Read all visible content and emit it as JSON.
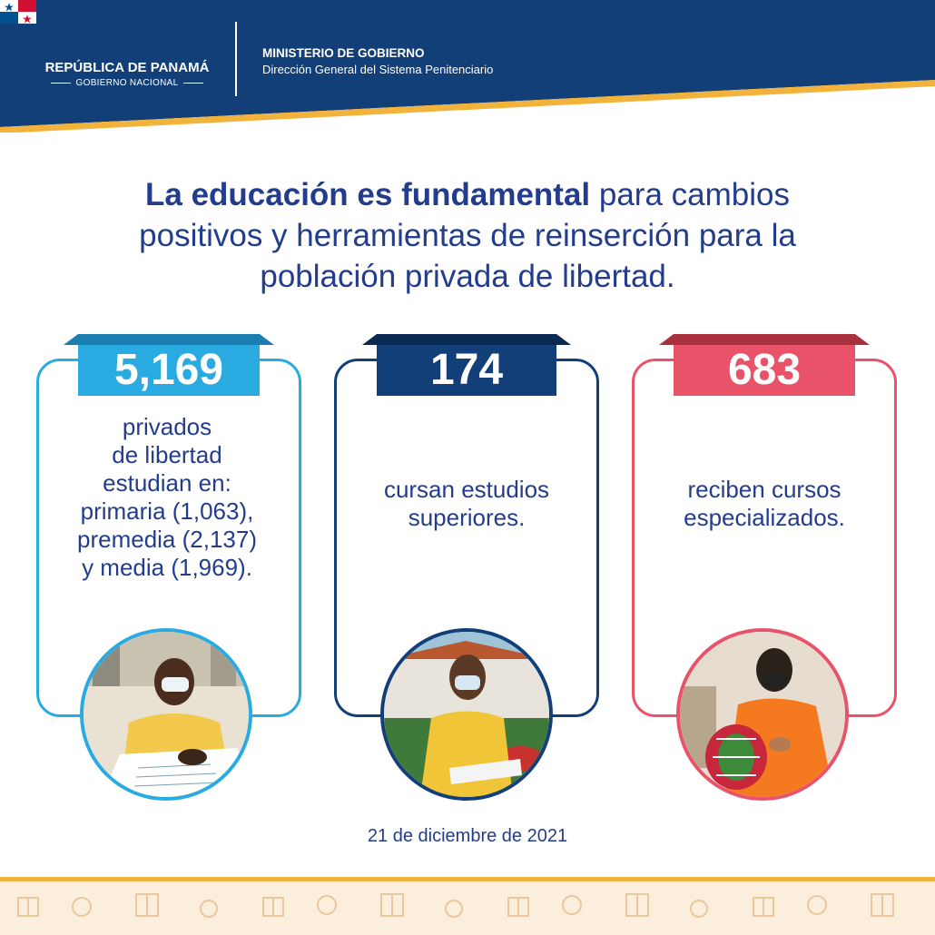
{
  "header": {
    "country": "REPÚBLICA DE PANAMÁ",
    "government": "GOBIERNO NACIONAL",
    "ministry": "MINISTERIO DE GOBIERNO",
    "directorate": "Dirección General del Sistema Penitenciario",
    "colors": {
      "navy": "#123f78",
      "gold": "#f2b33d"
    }
  },
  "headline": {
    "bold": "La educación es fundamental",
    "line1_rest": " para cambios",
    "line2": "positivos y herramientas de reinserción para la",
    "line3": "población privada de libertad."
  },
  "cards": [
    {
      "number": "5,169",
      "lines": [
        "privados",
        "de libertad",
        "estudian en:",
        "primaria (1,063),",
        "premedia (2,137)",
        "y media (1,969)."
      ],
      "color": "#29abe2"
    },
    {
      "number": "174",
      "lines": [
        "cursan estudios",
        "superiores."
      ],
      "color": "#123f78"
    },
    {
      "number": "683",
      "lines": [
        "reciben cursos",
        "especializados."
      ],
      "color": "#e8536a"
    }
  ],
  "date": "21 de diciembre de 2021",
  "icons": [
    "panama-flag-icon",
    "gift-pattern-icon"
  ]
}
